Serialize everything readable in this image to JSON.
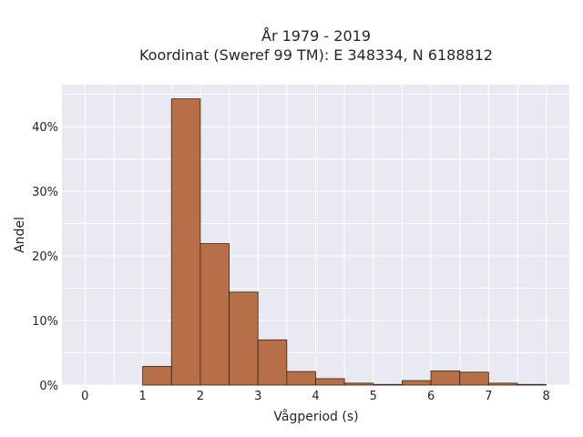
{
  "chart_data": {
    "type": "bar",
    "title_line1": "År 1979 - 2019",
    "title_line2": "Koordinat (Sweref 99 TM): E 348334, N 6188812",
    "xlabel": "Vågperiod (s)",
    "ylabel": "Andel",
    "xlim": [
      -0.4,
      8.4
    ],
    "ylim": [
      0,
      0.465
    ],
    "x_ticks": [
      0,
      1,
      2,
      3,
      4,
      5,
      6,
      7,
      8
    ],
    "x_tick_labels": [
      "0",
      "1",
      "2",
      "3",
      "4",
      "5",
      "6",
      "7",
      "8"
    ],
    "y_ticks": [
      0,
      0.1,
      0.2,
      0.3,
      0.4
    ],
    "y_tick_labels": [
      "0%",
      "10%",
      "20%",
      "30%",
      "40%"
    ],
    "bin_width": 0.5,
    "bins": [
      {
        "x0": 1.0,
        "x1": 1.5,
        "value": 0.029
      },
      {
        "x0": 1.5,
        "x1": 2.0,
        "value": 0.443
      },
      {
        "x0": 2.0,
        "x1": 2.5,
        "value": 0.219
      },
      {
        "x0": 2.5,
        "x1": 3.0,
        "value": 0.144
      },
      {
        "x0": 3.0,
        "x1": 3.5,
        "value": 0.07
      },
      {
        "x0": 3.5,
        "x1": 4.0,
        "value": 0.021
      },
      {
        "x0": 4.0,
        "x1": 4.5,
        "value": 0.01
      },
      {
        "x0": 4.5,
        "x1": 5.0,
        "value": 0.003
      },
      {
        "x0": 5.0,
        "x1": 5.5,
        "value": 0.001
      },
      {
        "x0": 5.5,
        "x1": 6.0,
        "value": 0.007
      },
      {
        "x0": 6.0,
        "x1": 6.5,
        "value": 0.022
      },
      {
        "x0": 6.5,
        "x1": 7.0,
        "value": 0.02
      },
      {
        "x0": 7.0,
        "x1": 7.5,
        "value": 0.003
      },
      {
        "x0": 7.5,
        "x1": 8.0,
        "value": 0.001
      }
    ],
    "grid": true,
    "colors": {
      "bar_fill": "#b66f47",
      "bar_stroke": "#3a2418",
      "plot_background": "#e9e9f1",
      "grid": "#ffffff"
    }
  }
}
